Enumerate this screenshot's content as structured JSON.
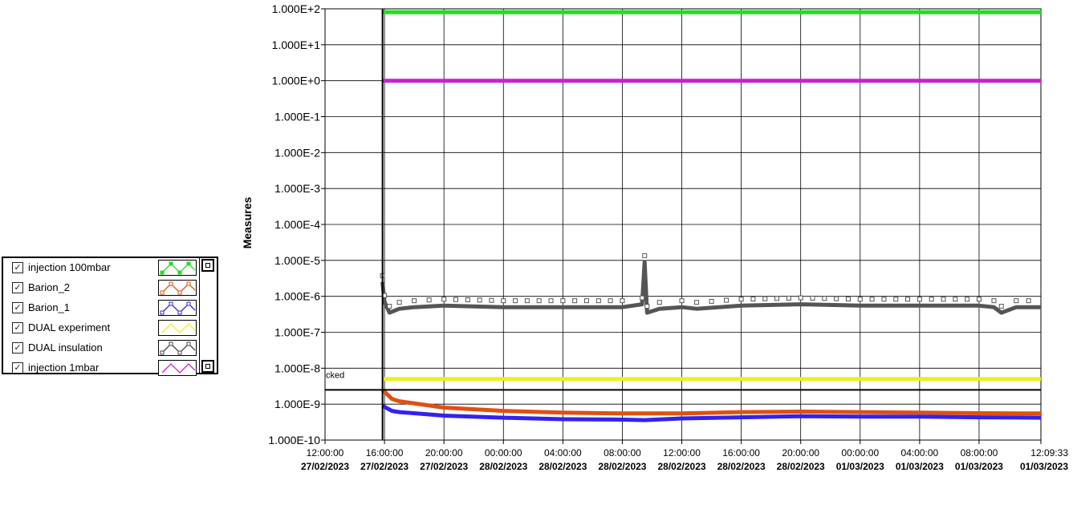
{
  "legend": {
    "items": [
      {
        "label": "injection 100mbar",
        "color": "#22dd22",
        "marker": "square-filled",
        "checked": true
      },
      {
        "label": "Barion_2",
        "color": "#e05010",
        "marker": "x",
        "checked": true
      },
      {
        "label": "Barion_1",
        "color": "#3322dd",
        "marker": "square-open",
        "checked": true
      },
      {
        "label": "DUAL experiment",
        "color": "#eeee22",
        "marker": "none",
        "checked": true
      },
      {
        "label": "DUAL insulation",
        "color": "#444444",
        "marker": "square-open",
        "checked": true
      },
      {
        "label": "injection 1mbar",
        "color": "#cc22cc",
        "marker": "none",
        "checked": true
      }
    ],
    "check_glyph": "☑"
  },
  "chart_data": {
    "type": "line",
    "ylabel": "Measures",
    "xlabel": "",
    "yscale": "log",
    "ylim": [
      1e-10,
      100
    ],
    "yticks": [
      "1.000E+2",
      "1.000E+1",
      "1.000E+0",
      "1.000E-1",
      "1.000E-2",
      "1.000E-3",
      "1.000E-4",
      "1.000E-5",
      "1.000E-6",
      "1.000E-7",
      "1.000E-8",
      "1.000E-9",
      "1.000E-10"
    ],
    "xlim": [
      "27/02/2023 12:00:00",
      "01/03/2023 12:09:33"
    ],
    "xticks": [
      {
        "time": "12:00:00",
        "date": "27/02/2023"
      },
      {
        "time": "16:00:00",
        "date": "27/02/2023"
      },
      {
        "time": "20:00:00",
        "date": "27/02/2023"
      },
      {
        "time": "00:00:00",
        "date": "28/02/2023"
      },
      {
        "time": "04:00:00",
        "date": "28/02/2023"
      },
      {
        "time": "08:00:00",
        "date": "28/02/2023"
      },
      {
        "time": "12:00:00",
        "date": "28/02/2023"
      },
      {
        "time": "16:00:00",
        "date": "28/02/2023"
      },
      {
        "time": "20:00:00",
        "date": "28/02/2023"
      },
      {
        "time": "00:00:00",
        "date": "01/03/2023"
      },
      {
        "time": "04:00:00",
        "date": "01/03/2023"
      },
      {
        "time": "08:00:00",
        "date": "01/03/2023"
      },
      {
        "time": "12:09:33",
        "date": "01/03/2023"
      }
    ],
    "grid": true,
    "cursor": {
      "x": "27/02/2023 15:52:00",
      "y": 2.5e-09,
      "label": "cked"
    },
    "series": [
      {
        "name": "injection 100mbar",
        "color": "#22dd22",
        "x": [
          "27/02/2023 15:52:00",
          "01/03/2023 12:09:33"
        ],
        "y": [
          80,
          80
        ]
      },
      {
        "name": "injection 1mbar",
        "color": "#cc22cc",
        "x": [
          "27/02/2023 15:52:00",
          "01/03/2023 12:09:33"
        ],
        "y": [
          1.0,
          1.0
        ]
      },
      {
        "name": "DUAL experiment",
        "color": "#eeee22",
        "x": [
          "27/02/2023 15:52:00",
          "01/03/2023 12:09:33"
        ],
        "y": [
          5e-09,
          5e-09
        ]
      },
      {
        "name": "DUAL insulation",
        "color": "#555555",
        "x": [
          "27/02/2023 15:52:00",
          "27/02/2023 16:00:00",
          "27/02/2023 16:20:00",
          "27/02/2023 17:00:00",
          "27/02/2023 18:00:00",
          "27/02/2023 20:00:00",
          "28/02/2023 00:00:00",
          "28/02/2023 04:00:00",
          "28/02/2023 08:00:00",
          "28/02/2023 09:20:00",
          "28/02/2023 09:30:00",
          "28/02/2023 09:40:00",
          "28/02/2023 10:30:00",
          "28/02/2023 12:00:00",
          "28/02/2023 13:00:00",
          "28/02/2023 16:00:00",
          "28/02/2023 20:00:00",
          "01/03/2023 00:00:00",
          "01/03/2023 04:00:00",
          "01/03/2023 08:00:00",
          "01/03/2023 09:00:00",
          "01/03/2023 09:30:00",
          "01/03/2023 10:30:00",
          "01/03/2023 12:09:33"
        ],
        "y": [
          2.5e-06,
          7e-07,
          3.5e-07,
          4.5e-07,
          5e-07,
          5.5e-07,
          5e-07,
          5e-07,
          5e-07,
          6e-07,
          9e-06,
          3.5e-07,
          4.5e-07,
          5e-07,
          4.5e-07,
          5.5e-07,
          6e-07,
          5.5e-07,
          5.5e-07,
          5.5e-07,
          5e-07,
          3.5e-07,
          5e-07,
          5e-07
        ]
      },
      {
        "name": "Barion_2",
        "color": "#e05010",
        "x": [
          "27/02/2023 15:52:00",
          "27/02/2023 16:30:00",
          "27/02/2023 17:00:00",
          "27/02/2023 20:00:00",
          "28/02/2023 00:00:00",
          "28/02/2023 04:00:00",
          "28/02/2023 08:00:00",
          "28/02/2023 12:00:00",
          "28/02/2023 16:00:00",
          "28/02/2023 20:00:00",
          "01/03/2023 00:00:00",
          "01/03/2023 04:00:00",
          "01/03/2023 08:00:00",
          "01/03/2023 12:09:33"
        ],
        "y": [
          2.5e-09,
          1.4e-09,
          1.2e-09,
          8e-10,
          6.5e-10,
          5.8e-10,
          5.5e-10,
          5.5e-10,
          6e-10,
          6.2e-10,
          6e-10,
          5.8e-10,
          5.6e-10,
          5.5e-10
        ]
      },
      {
        "name": "Barion_1",
        "color": "#3322ee",
        "x": [
          "27/02/2023 15:52:00",
          "27/02/2023 16:30:00",
          "27/02/2023 17:00:00",
          "27/02/2023 20:00:00",
          "28/02/2023 00:00:00",
          "28/02/2023 04:00:00",
          "28/02/2023 08:00:00",
          "28/02/2023 09:30:00",
          "28/02/2023 12:00:00",
          "28/02/2023 16:00:00",
          "28/02/2023 20:00:00",
          "01/03/2023 00:00:00",
          "01/03/2023 04:00:00",
          "01/03/2023 08:00:00",
          "01/03/2023 12:09:33"
        ],
        "y": [
          9e-10,
          6.5e-10,
          6e-10,
          4.8e-10,
          4.2e-10,
          3.8e-10,
          3.7e-10,
          3.6e-10,
          4e-10,
          4.3e-10,
          4.6e-10,
          4.5e-10,
          4.5e-10,
          4.3e-10,
          4.2e-10
        ]
      }
    ]
  }
}
